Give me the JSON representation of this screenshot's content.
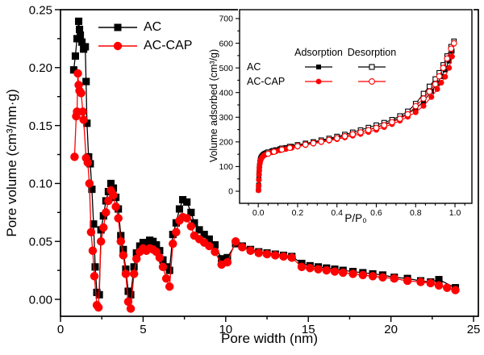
{
  "colors": {
    "ac": "#000000",
    "ac_cap": "#ff0000",
    "open_marker_fill": "#ffffff",
    "background": "#ffffff"
  },
  "chart_data": [
    {
      "id": "main",
      "type": "line",
      "title": "",
      "xlabel": "Pore width (nm)",
      "ylabel": "Pore volume (cm³/nm·g)",
      "xlim": [
        0,
        25.29
      ],
      "ylim": [
        -0.0146,
        0.25
      ],
      "x_ticks": [
        0,
        5,
        10,
        15,
        20,
        25
      ],
      "x_tick_labels": [
        "0",
        "5",
        "10",
        "15",
        "20",
        "25"
      ],
      "x_minor_step": 2.5,
      "y_ticks": [
        0,
        0.05,
        0.1,
        0.15,
        0.2,
        0.25
      ],
      "y_tick_labels": [
        "0.00",
        "0.05",
        "0.10",
        "0.15",
        "0.20",
        "0.25"
      ],
      "y_minor_step": 0.025,
      "grid": false,
      "legend_position": "top-left-inside",
      "series": [
        {
          "name": "AC",
          "color": "#000000",
          "marker": "square",
          "open": false,
          "x": [
            0.8,
            0.9,
            1.0,
            1.1,
            1.15,
            1.2,
            1.3,
            1.4,
            1.5,
            1.55,
            1.6,
            1.7,
            1.8,
            1.9,
            2.0,
            2.1,
            2.2,
            2.35,
            2.45,
            2.6,
            2.75,
            2.9,
            3.05,
            3.2,
            3.35,
            3.5,
            3.65,
            3.8,
            3.95,
            4.1,
            4.25,
            4.45,
            4.6,
            4.8,
            5.0,
            5.2,
            5.4,
            5.6,
            5.8,
            6.0,
            6.2,
            6.4,
            6.6,
            6.8,
            7.0,
            7.2,
            7.4,
            7.65,
            7.9,
            8.1,
            8.4,
            8.7,
            9.0,
            9.35,
            9.75,
            10.1,
            10.6,
            11.0,
            11.5,
            12.0,
            12.5,
            13.0,
            13.5,
            14.0,
            14.6,
            15.1,
            15.6,
            16.1,
            16.6,
            17.1,
            17.7,
            18.3,
            18.9,
            19.5,
            20.2,
            21.0,
            21.8,
            22.4,
            22.9,
            23.9
          ],
          "y": [
            0.198,
            0.21,
            0.225,
            0.24,
            0.233,
            0.228,
            0.222,
            0.216,
            0.218,
            0.188,
            0.152,
            0.123,
            0.117,
            0.095,
            0.065,
            0.028,
            0.006,
            0.004,
            0.06,
            0.072,
            0.085,
            0.093,
            0.1,
            0.096,
            0.088,
            0.078,
            0.055,
            0.043,
            0.026,
            0.007,
            0.004,
            0.028,
            0.04,
            0.046,
            0.049,
            0.047,
            0.051,
            0.05,
            0.047,
            0.042,
            0.034,
            0.028,
            0.025,
            0.056,
            0.066,
            0.078,
            0.086,
            0.084,
            0.075,
            0.066,
            0.06,
            0.056,
            0.052,
            0.047,
            0.035,
            0.036,
            0.048,
            0.046,
            0.043,
            0.041,
            0.04,
            0.039,
            0.038,
            0.037,
            0.031,
            0.029,
            0.028,
            0.027,
            0.026,
            0.025,
            0.024,
            0.023,
            0.022,
            0.021,
            0.019,
            0.018,
            0.016,
            0.015,
            0.017,
            0.01
          ]
        },
        {
          "name": "AC-CAP",
          "color": "#ff0000",
          "marker": "circle",
          "open": false,
          "x": [
            0.85,
            0.95,
            1.0,
            1.05,
            1.1,
            1.15,
            1.25,
            1.35,
            1.4,
            1.55,
            1.65,
            1.75,
            1.85,
            1.95,
            2.05,
            2.2,
            2.3,
            2.45,
            2.6,
            2.75,
            2.9,
            3.05,
            3.2,
            3.35,
            3.5,
            3.65,
            3.8,
            3.95,
            4.1,
            4.25,
            4.45,
            4.6,
            4.8,
            5.0,
            5.2,
            5.4,
            5.6,
            5.8,
            6.0,
            6.2,
            6.4,
            6.6,
            6.8,
            7.0,
            7.2,
            7.4,
            7.65,
            7.9,
            8.1,
            8.4,
            8.7,
            9.0,
            9.35,
            9.75,
            10.1,
            10.6,
            11.0,
            11.5,
            12.0,
            12.5,
            13.0,
            13.5,
            14.0,
            14.6,
            15.1,
            15.6,
            16.1,
            16.6,
            17.1,
            17.7,
            18.3,
            18.9,
            19.5,
            20.2,
            21.0,
            21.8,
            22.4,
            22.9,
            23.4,
            23.9
          ],
          "y": [
            0.123,
            0.158,
            0.162,
            0.195,
            0.185,
            0.18,
            0.178,
            0.162,
            0.155,
            0.122,
            0.118,
            0.1,
            0.058,
            0.042,
            0.02,
            -0.005,
            -0.007,
            0.05,
            0.062,
            0.075,
            0.085,
            0.094,
            0.09,
            0.08,
            0.07,
            0.05,
            0.038,
            0.022,
            -0.002,
            -0.008,
            0.022,
            0.035,
            0.041,
            0.044,
            0.042,
            0.044,
            0.043,
            0.041,
            0.036,
            0.028,
            0.018,
            0.011,
            0.048,
            0.058,
            0.068,
            0.071,
            0.07,
            0.063,
            0.055,
            0.052,
            0.049,
            0.046,
            0.041,
            0.03,
            0.032,
            0.05,
            0.045,
            0.042,
            0.04,
            0.039,
            0.038,
            0.037,
            0.036,
            0.028,
            0.027,
            0.026,
            0.025,
            0.024,
            0.023,
            0.022,
            0.021,
            0.02,
            0.019,
            0.018,
            0.016,
            0.015,
            0.014,
            0.012,
            0.01,
            0.008
          ]
        }
      ]
    },
    {
      "id": "inset",
      "type": "line",
      "title": "",
      "xlabel": "P/P₀",
      "ylabel": "Volume adsorbed  (cm³/g)",
      "xlim": [
        -0.095,
        1.086
      ],
      "ylim": [
        -49,
        736
      ],
      "x_ticks": [
        0,
        0.2,
        0.4,
        0.6,
        0.8,
        1.0
      ],
      "x_tick_labels": [
        "0.0",
        "0.2",
        "0.4",
        "0.6",
        "0.8",
        "1.0"
      ],
      "x_minor_step": 0.05,
      "y_ticks": [
        0,
        100,
        200,
        300,
        400,
        500,
        600,
        700
      ],
      "y_tick_labels": [
        "0",
        "100",
        "200",
        "300",
        "400",
        "500",
        "600",
        "700"
      ],
      "y_minor_step": 50,
      "grid": false,
      "legend": {
        "headers": [
          "Adsorption",
          "Desorption"
        ],
        "rows": [
          "AC",
          "AC-CAP"
        ]
      },
      "series": [
        {
          "name": "AC adsorption",
          "color": "#000000",
          "marker": "square",
          "open": false,
          "x": [
            0.001,
            0.002,
            0.003,
            0.004,
            0.005,
            0.006,
            0.008,
            0.01,
            0.012,
            0.015,
            0.018,
            0.022,
            0.027,
            0.033,
            0.04,
            0.05,
            0.07,
            0.09,
            0.11,
            0.14,
            0.17,
            0.2,
            0.24,
            0.28,
            0.32,
            0.36,
            0.4,
            0.44,
            0.48,
            0.52,
            0.56,
            0.6,
            0.64,
            0.68,
            0.72,
            0.76,
            0.8,
            0.84,
            0.88,
            0.91,
            0.93,
            0.95,
            0.97,
            0.985,
            0.995
          ],
          "y": [
            5,
            25,
            50,
            72,
            90,
            103,
            118,
            127,
            133,
            138,
            142,
            146,
            150,
            153,
            156,
            159,
            164,
            168,
            172,
            177,
            182,
            187,
            193,
            199,
            205,
            211,
            218,
            225,
            232,
            240,
            249,
            259,
            270,
            284,
            298,
            315,
            334,
            364,
            405,
            437,
            465,
            492,
            528,
            568,
            603
          ]
        },
        {
          "name": "AC desorption",
          "color": "#000000",
          "marker": "square",
          "open": true,
          "x": [
            0.995,
            0.98,
            0.96,
            0.94,
            0.92,
            0.9,
            0.87,
            0.84,
            0.8,
            0.76,
            0.72,
            0.68,
            0.64,
            0.6,
            0.56,
            0.52,
            0.48,
            0.44,
            0.4,
            0.36,
            0.32,
            0.28,
            0.24,
            0.2,
            0.16,
            0.12,
            0.08,
            0.05
          ],
          "y": [
            608,
            586,
            548,
            512,
            480,
            455,
            425,
            396,
            355,
            324,
            305,
            290,
            278,
            268,
            258,
            248,
            239,
            230,
            222,
            214,
            207,
            200,
            194,
            188,
            181,
            174,
            165,
            158
          ]
        },
        {
          "name": "AC-CAP adsorption",
          "color": "#ff0000",
          "marker": "circle",
          "open": false,
          "x": [
            0.001,
            0.002,
            0.003,
            0.004,
            0.005,
            0.006,
            0.008,
            0.01,
            0.012,
            0.015,
            0.018,
            0.022,
            0.027,
            0.033,
            0.04,
            0.05,
            0.07,
            0.09,
            0.11,
            0.14,
            0.17,
            0.2,
            0.24,
            0.28,
            0.32,
            0.36,
            0.4,
            0.44,
            0.48,
            0.52,
            0.56,
            0.6,
            0.64,
            0.68,
            0.72,
            0.76,
            0.8,
            0.84,
            0.88,
            0.91,
            0.93,
            0.95,
            0.97,
            0.985,
            0.995
          ],
          "y": [
            4,
            22,
            46,
            67,
            84,
            97,
            112,
            121,
            127,
            132,
            136,
            140,
            144,
            147,
            150,
            153,
            158,
            162,
            166,
            171,
            176,
            181,
            187,
            193,
            199,
            205,
            211,
            218,
            225,
            232,
            240,
            249,
            260,
            272,
            286,
            302,
            320,
            346,
            382,
            414,
            440,
            464,
            500,
            546,
            598
          ]
        },
        {
          "name": "AC-CAP desorption",
          "color": "#ff0000",
          "marker": "circle",
          "open": true,
          "x": [
            0.995,
            0.98,
            0.96,
            0.94,
            0.92,
            0.9,
            0.87,
            0.84,
            0.8,
            0.76,
            0.72,
            0.68,
            0.64,
            0.6,
            0.56,
            0.52,
            0.48,
            0.44,
            0.4,
            0.36,
            0.32,
            0.28,
            0.24,
            0.2,
            0.16,
            0.12,
            0.08,
            0.05
          ],
          "y": [
            600,
            578,
            538,
            500,
            466,
            434,
            404,
            376,
            345,
            312,
            294,
            280,
            268,
            257,
            248,
            239,
            231,
            223,
            215,
            208,
            201,
            195,
            189,
            183,
            176,
            169,
            160,
            152
          ]
        }
      ]
    }
  ]
}
